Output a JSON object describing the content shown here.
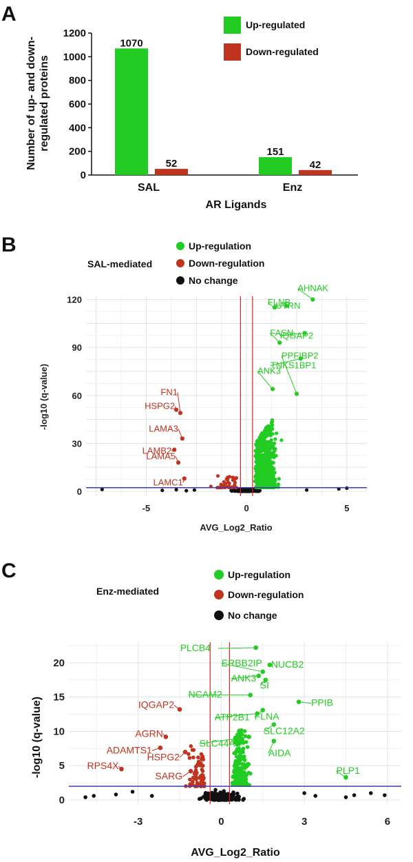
{
  "panels": {
    "a": "A",
    "b": "B",
    "c": "C"
  },
  "colors": {
    "up": "#22cc22",
    "down": "#c0331f",
    "none": "#111111",
    "threshold": "#3b3bb0",
    "vline": "#dd2222",
    "grid": "#e6e6e6"
  },
  "chart_data": [
    {
      "type": "bar",
      "ylabel": "Number of up- and down-regulated proteins",
      "ylabel_lines": [
        "Number of up- and down-",
        "regulated proteins"
      ],
      "xlabel": "AR Ligands",
      "categories": [
        "SAL",
        "Enz"
      ],
      "series": [
        {
          "name": "Up-regulated",
          "values": [
            1070,
            151
          ]
        },
        {
          "name": "Down-regulated",
          "values": [
            52,
            42
          ]
        }
      ],
      "value_labels": [
        "1070",
        "52",
        "151",
        "42"
      ],
      "ylim": [
        0,
        1200
      ],
      "yticks": [
        0,
        200,
        400,
        600,
        800,
        1000,
        1200
      ],
      "legend": "top-right"
    },
    {
      "type": "scatter",
      "subtitle": "SAL-mediated",
      "xlabel": "AVG_Log2_Ratio",
      "ylabel": "-log10 (q-value)",
      "xlim": [
        -8,
        6
      ],
      "ylim": [
        -3,
        122
      ],
      "xticks": [
        -5,
        0,
        5
      ],
      "yticks": [
        0,
        30,
        60,
        90,
        120
      ],
      "legend": [
        "Up-regulation",
        "Down-regulation",
        "No change"
      ],
      "threshold_y": 2.3,
      "vlines": [
        -0.3,
        0.3
      ],
      "labeled_points": [
        {
          "label": "AHNAK",
          "x": 3.3,
          "y": 120,
          "class": "up"
        },
        {
          "label": "UTRN",
          "x": 2.0,
          "y": 116,
          "class": "up"
        },
        {
          "label": "FLNB",
          "x": 1.4,
          "y": 115,
          "class": "up"
        },
        {
          "label": "IQGAP2",
          "x": 2.9,
          "y": 99,
          "class": "up"
        },
        {
          "label": "FASN",
          "x": 1.65,
          "y": 93,
          "class": "up"
        },
        {
          "label": "TNKS1BP1",
          "x": 2.7,
          "y": 83,
          "class": "up"
        },
        {
          "label": "PPFIBP2",
          "x": 2.5,
          "y": 61,
          "class": "up"
        },
        {
          "label": "ANK3",
          "x": 1.3,
          "y": 64,
          "class": "up"
        },
        {
          "label": "FN1",
          "x": -3.3,
          "y": 49,
          "class": "down"
        },
        {
          "label": "HSPG2",
          "x": -3.5,
          "y": 51,
          "class": "down"
        },
        {
          "label": "LAMA3",
          "x": -3.2,
          "y": 33,
          "class": "down"
        },
        {
          "label": "LAMB2",
          "x": -3.6,
          "y": 26,
          "class": "down"
        },
        {
          "label": "LAMA5",
          "x": -3.4,
          "y": 18,
          "class": "down"
        },
        {
          "label": "LAMC1",
          "x": -3.1,
          "y": 8,
          "class": "down"
        }
      ]
    },
    {
      "type": "scatter",
      "subtitle": "Enz-mediated",
      "xlabel": "AVG_Log2_Ratio",
      "ylabel": "-log10 (q-value)",
      "xlim": [
        -5.5,
        6.5
      ],
      "ylim": [
        -0.6,
        23
      ],
      "xticks": [
        -3,
        0,
        3,
        6
      ],
      "yticks": [
        0,
        5,
        10,
        15,
        20
      ],
      "legend": [
        "Up-regulation",
        "Down-regulation",
        "No change"
      ],
      "threshold_y": 2,
      "vlines": [
        -0.4,
        0.3
      ],
      "labeled_points": [
        {
          "label": "PLCB4",
          "x": 1.25,
          "y": 22.2,
          "class": "up"
        },
        {
          "label": "ERBB2IP",
          "x": 1.5,
          "y": 18.7,
          "class": "up"
        },
        {
          "label": "NUCB2",
          "x": 1.75,
          "y": 19.7,
          "class": "up"
        },
        {
          "label": "ANK3",
          "x": 1.35,
          "y": 18.1,
          "class": "up"
        },
        {
          "label": "SI",
          "x": 1.6,
          "y": 17.5,
          "class": "up"
        },
        {
          "label": "PPIB",
          "x": 2.8,
          "y": 14.3,
          "class": "up"
        },
        {
          "label": "NCAM2",
          "x": 1.05,
          "y": 15.3,
          "class": "up"
        },
        {
          "label": "FLNA",
          "x": 1.5,
          "y": 13.1,
          "class": "up"
        },
        {
          "label": "ATP2B1",
          "x": 1.3,
          "y": 12.6,
          "class": "up"
        },
        {
          "label": "SLC12A2",
          "x": 1.9,
          "y": 11.0,
          "class": "up"
        },
        {
          "label": "SLC44A1",
          "x": 1.0,
          "y": 9.2,
          "class": "up"
        },
        {
          "label": "AIDA",
          "x": 1.9,
          "y": 8.6,
          "class": "up"
        },
        {
          "label": "PLP1",
          "x": 4.5,
          "y": 3.3,
          "class": "up"
        },
        {
          "label": "IQGAP2",
          "x": -1.5,
          "y": 13.2,
          "class": "down"
        },
        {
          "label": "AGRN",
          "x": -2.0,
          "y": 9.2,
          "class": "down"
        },
        {
          "label": "ADAMTS1",
          "x": -2.2,
          "y": 7.6,
          "class": "down"
        },
        {
          "label": "HSPG2",
          "x": -1.3,
          "y": 7.0,
          "class": "down"
        },
        {
          "label": "RPS4X",
          "x": -3.6,
          "y": 4.5,
          "class": "down"
        },
        {
          "label": "SARG",
          "x": -1.1,
          "y": 4.2,
          "class": "down"
        }
      ]
    }
  ]
}
